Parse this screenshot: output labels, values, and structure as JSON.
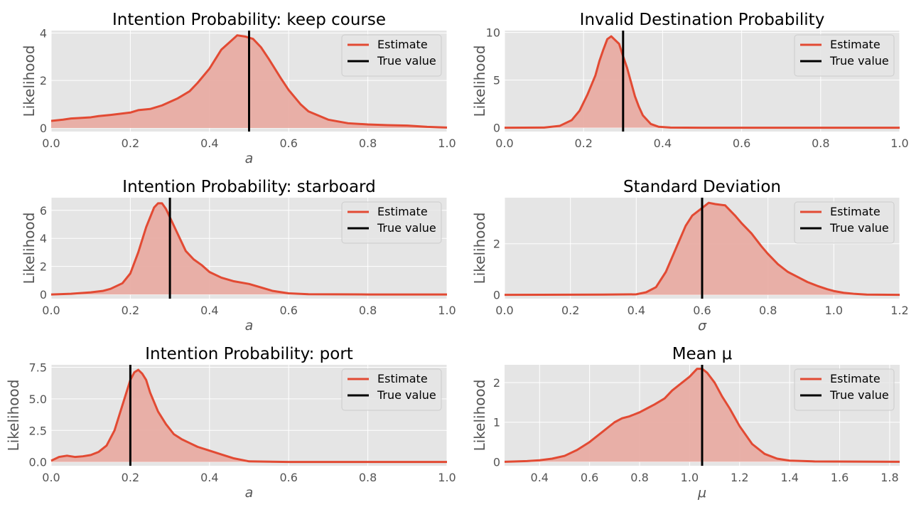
{
  "style": {
    "plot_bg": "#e5e5e5",
    "grid": "#ffffff",
    "estimate_color": "#e24a33",
    "fill_color": "#e8a9a0",
    "true_color": "#000000"
  },
  "legend": {
    "estimate_label": "Estimate",
    "true_label": "True value",
    "placement": "upper right"
  },
  "chart_data": [
    {
      "type": "area",
      "title": "Intention Probability: keep course",
      "xlabel": "a",
      "ylabel": "Likelihood",
      "xlim": [
        0.0,
        1.0
      ],
      "ylim": [
        -0.15,
        4.1
      ],
      "xticks": [
        0.0,
        0.2,
        0.4,
        0.6,
        0.8,
        1.0
      ],
      "xtick_labels": [
        "0.0",
        "0.2",
        "0.4",
        "0.6",
        "0.8",
        "1.0"
      ],
      "yticks": [
        0,
        2,
        4
      ],
      "ytick_labels": [
        "0",
        "2",
        "4"
      ],
      "true_value": 0.5,
      "series": [
        {
          "x": [
            0.0,
            0.03,
            0.05,
            0.07,
            0.1,
            0.12,
            0.15,
            0.2,
            0.22,
            0.25,
            0.28,
            0.3,
            0.32,
            0.35,
            0.37,
            0.4,
            0.43,
            0.45,
            0.47,
            0.49,
            0.51,
            0.53,
            0.55,
            0.58,
            0.6,
            0.63,
            0.65,
            0.7,
            0.75,
            0.8,
            0.85,
            0.9,
            0.95,
            1.0
          ],
          "y": [
            0.3,
            0.35,
            0.4,
            0.42,
            0.45,
            0.5,
            0.55,
            0.65,
            0.75,
            0.8,
            0.95,
            1.1,
            1.25,
            1.55,
            1.9,
            2.5,
            3.3,
            3.6,
            3.9,
            3.85,
            3.75,
            3.4,
            2.9,
            2.1,
            1.6,
            1.0,
            0.7,
            0.35,
            0.2,
            0.15,
            0.12,
            0.1,
            0.05,
            0.02
          ]
        }
      ]
    },
    {
      "type": "area",
      "title": "Invalid Destination Probability",
      "xlabel": "",
      "ylabel": "Likelihood",
      "xlim": [
        0.0,
        1.0
      ],
      "ylim": [
        -0.4,
        10.2
      ],
      "xticks": [
        0.0,
        0.2,
        0.4,
        0.6,
        0.8,
        1.0
      ],
      "xtick_labels": [
        "0.0",
        "0.2",
        "0.4",
        "0.6",
        "0.8",
        "1.0"
      ],
      "yticks": [
        0,
        5,
        10
      ],
      "ytick_labels": [
        "0",
        "5",
        "10"
      ],
      "true_value": 0.3,
      "series": [
        {
          "x": [
            0.0,
            0.1,
            0.14,
            0.17,
            0.19,
            0.21,
            0.23,
            0.24,
            0.25,
            0.26,
            0.27,
            0.28,
            0.29,
            0.3,
            0.31,
            0.32,
            0.33,
            0.34,
            0.35,
            0.37,
            0.39,
            0.42,
            0.5,
            0.7,
            1.0
          ],
          "y": [
            0.0,
            0.02,
            0.2,
            0.8,
            1.8,
            3.5,
            5.5,
            7.0,
            8.2,
            9.3,
            9.6,
            9.2,
            8.8,
            7.5,
            6.3,
            4.8,
            3.3,
            2.2,
            1.3,
            0.4,
            0.1,
            0.02,
            0.0,
            0.0,
            0.0
          ]
        }
      ]
    },
    {
      "type": "area",
      "title": "Intention Probability: starboard",
      "xlabel": "a",
      "ylabel": "Likelihood",
      "xlim": [
        0.0,
        1.0
      ],
      "ylim": [
        -0.3,
        6.9
      ],
      "xticks": [
        0.0,
        0.2,
        0.4,
        0.6,
        0.8,
        1.0
      ],
      "xtick_labels": [
        "0.0",
        "0.2",
        "0.4",
        "0.6",
        "0.8",
        "1.0"
      ],
      "yticks": [
        0,
        2,
        4,
        6
      ],
      "ytick_labels": [
        "0",
        "2",
        "4",
        "6"
      ],
      "true_value": 0.3,
      "series": [
        {
          "x": [
            0.0,
            0.05,
            0.1,
            0.13,
            0.15,
            0.18,
            0.2,
            0.22,
            0.24,
            0.26,
            0.27,
            0.28,
            0.29,
            0.3,
            0.32,
            0.34,
            0.36,
            0.38,
            0.4,
            0.43,
            0.46,
            0.5,
            0.53,
            0.56,
            0.6,
            0.65,
            0.8,
            1.0
          ],
          "y": [
            0.0,
            0.05,
            0.15,
            0.25,
            0.4,
            0.8,
            1.5,
            3.0,
            4.8,
            6.2,
            6.5,
            6.5,
            6.1,
            5.5,
            4.3,
            3.1,
            2.5,
            2.1,
            1.6,
            1.2,
            0.95,
            0.75,
            0.5,
            0.25,
            0.08,
            0.02,
            0.0,
            0.0
          ]
        }
      ]
    },
    {
      "type": "area",
      "title": "Standard Deviation",
      "xlabel": "σ",
      "ylabel": "Likelihood",
      "xlim": [
        0.0,
        1.2
      ],
      "ylim": [
        -0.15,
        3.8
      ],
      "xticks": [
        0.0,
        0.2,
        0.4,
        0.6,
        0.8,
        1.0,
        1.2
      ],
      "xtick_labels": [
        "0.0",
        "0.2",
        "0.4",
        "0.6",
        "0.8",
        "1.0",
        "1.2"
      ],
      "yticks": [
        0,
        2
      ],
      "ytick_labels": [
        "0",
        "2"
      ],
      "true_value": 0.6,
      "series": [
        {
          "x": [
            0.0,
            0.3,
            0.4,
            0.43,
            0.46,
            0.49,
            0.52,
            0.55,
            0.57,
            0.6,
            0.62,
            0.64,
            0.67,
            0.7,
            0.72,
            0.75,
            0.78,
            0.8,
            0.83,
            0.86,
            0.89,
            0.92,
            0.95,
            0.98,
            1.0,
            1.03,
            1.06,
            1.1,
            1.2
          ],
          "y": [
            0.0,
            0.01,
            0.02,
            0.1,
            0.3,
            0.9,
            1.8,
            2.7,
            3.1,
            3.4,
            3.6,
            3.55,
            3.5,
            3.1,
            2.8,
            2.4,
            1.9,
            1.6,
            1.2,
            0.9,
            0.7,
            0.5,
            0.35,
            0.22,
            0.15,
            0.08,
            0.04,
            0.01,
            0.0
          ]
        }
      ]
    },
    {
      "type": "area",
      "title": "Intention Probability: port",
      "xlabel": "a",
      "ylabel": "Likelihood",
      "xlim": [
        0.0,
        1.0
      ],
      "ylim": [
        -0.3,
        7.7
      ],
      "xticks": [
        0.0,
        0.2,
        0.4,
        0.6,
        0.8,
        1.0
      ],
      "xtick_labels": [
        "0.0",
        "0.2",
        "0.4",
        "0.6",
        "0.8",
        "1.0"
      ],
      "yticks": [
        0.0,
        2.5,
        5.0,
        7.5
      ],
      "ytick_labels": [
        "0.0",
        "2.5",
        "5.0",
        "7.5"
      ],
      "true_value": 0.2,
      "series": [
        {
          "x": [
            0.0,
            0.02,
            0.04,
            0.06,
            0.08,
            0.1,
            0.12,
            0.14,
            0.16,
            0.18,
            0.2,
            0.21,
            0.22,
            0.23,
            0.24,
            0.25,
            0.27,
            0.29,
            0.31,
            0.33,
            0.35,
            0.37,
            0.4,
            0.43,
            0.46,
            0.5,
            0.6,
            1.0
          ],
          "y": [
            0.1,
            0.4,
            0.5,
            0.4,
            0.45,
            0.55,
            0.8,
            1.3,
            2.5,
            4.5,
            6.5,
            7.1,
            7.3,
            7.0,
            6.5,
            5.5,
            4.0,
            3.0,
            2.2,
            1.8,
            1.5,
            1.2,
            0.9,
            0.6,
            0.3,
            0.05,
            0.0,
            0.0
          ]
        }
      ]
    },
    {
      "type": "area",
      "title": "Mean μ",
      "xlabel": "μ",
      "ylabel": "Likelihood",
      "xlim": [
        0.26,
        1.84
      ],
      "ylim": [
        -0.1,
        2.45
      ],
      "xticks": [
        0.4,
        0.6,
        0.8,
        1.0,
        1.2,
        1.4,
        1.6,
        1.8
      ],
      "xtick_labels": [
        "0.4",
        "0.6",
        "0.8",
        "1.0",
        "1.2",
        "1.4",
        "1.6",
        "1.8"
      ],
      "yticks": [
        0,
        1,
        2
      ],
      "ytick_labels": [
        "0",
        "1",
        "2"
      ],
      "true_value": 1.05,
      "series": [
        {
          "x": [
            0.26,
            0.35,
            0.4,
            0.45,
            0.5,
            0.55,
            0.6,
            0.65,
            0.7,
            0.73,
            0.76,
            0.8,
            0.83,
            0.86,
            0.9,
            0.93,
            0.96,
            1.0,
            1.03,
            1.05,
            1.07,
            1.1,
            1.13,
            1.16,
            1.2,
            1.25,
            1.3,
            1.35,
            1.4,
            1.5,
            1.84
          ],
          "y": [
            0.0,
            0.02,
            0.04,
            0.08,
            0.15,
            0.3,
            0.5,
            0.75,
            1.0,
            1.1,
            1.15,
            1.25,
            1.35,
            1.45,
            1.6,
            1.8,
            1.95,
            2.15,
            2.35,
            2.35,
            2.25,
            2.0,
            1.65,
            1.35,
            0.9,
            0.45,
            0.2,
            0.08,
            0.03,
            0.01,
            0.0
          ]
        }
      ]
    }
  ]
}
